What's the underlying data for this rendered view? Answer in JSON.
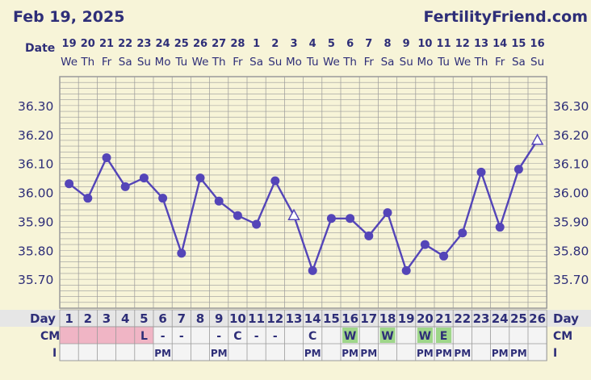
{
  "header": {
    "date": "Feb 19, 2025",
    "site": "FertilityFriend.com"
  },
  "row_labels": {
    "date": "Date",
    "day": "Day",
    "cm": "CM",
    "intercourse": "I"
  },
  "colors": {
    "line": "#5445b8",
    "axis_text": "#2e2e78",
    "background": "#f7f4d8",
    "grid": "#9a9a9a",
    "period_cell": "#f0b5c5",
    "fertile_cell": "#9fd68a",
    "row_bg": "#f4f4f4"
  },
  "chart_data": {
    "type": "line",
    "title": "",
    "ylim": [
      35.6,
      36.4
    ],
    "y_ticks": [
      "36.30",
      "36.20",
      "36.10",
      "36.00",
      "35.90",
      "35.80",
      "35.70"
    ],
    "dates": [
      "19",
      "20",
      "21",
      "22",
      "23",
      "24",
      "25",
      "26",
      "27",
      "28",
      "1",
      "2",
      "3",
      "4",
      "5",
      "6",
      "7",
      "8",
      "9",
      "10",
      "11",
      "12",
      "13",
      "14",
      "15",
      "16"
    ],
    "weekdays": [
      "We",
      "Th",
      "Fr",
      "Sa",
      "Su",
      "Mo",
      "Tu",
      "We",
      "Th",
      "Fr",
      "Sa",
      "Su",
      "Mo",
      "Tu",
      "We",
      "Th",
      "Fr",
      "Sa",
      "Su",
      "Mo",
      "Tu",
      "We",
      "Th",
      "Fr",
      "Sa",
      "Su"
    ],
    "cycle_days": [
      "1",
      "2",
      "3",
      "4",
      "5",
      "6",
      "7",
      "8",
      "9",
      "10",
      "11",
      "12",
      "13",
      "14",
      "15",
      "16",
      "17",
      "18",
      "19",
      "20",
      "21",
      "22",
      "23",
      "24",
      "25",
      "26"
    ],
    "temperatures": [
      36.03,
      35.98,
      36.12,
      36.02,
      36.05,
      35.98,
      35.79,
      36.05,
      35.97,
      35.92,
      35.89,
      36.04,
      35.92,
      35.73,
      35.91,
      35.91,
      35.85,
      35.93,
      35.73,
      35.82,
      35.78,
      35.86,
      36.07,
      35.88,
      36.08,
      36.18
    ],
    "markers": [
      "circle",
      "circle",
      "circle",
      "circle",
      "circle",
      "circle",
      "circle",
      "circle",
      "circle",
      "circle",
      "circle",
      "circle",
      "triangle",
      "circle",
      "circle",
      "circle",
      "circle",
      "circle",
      "circle",
      "circle",
      "circle",
      "circle",
      "circle",
      "circle",
      "circle",
      "triangle"
    ],
    "cm": [
      "",
      "",
      "",
      "",
      "L",
      "-",
      "-",
      "",
      "-",
      "C",
      "-",
      "-",
      "",
      "C",
      "",
      "W",
      "",
      "W",
      "",
      "W",
      "E",
      "",
      "",
      "",
      "",
      ""
    ],
    "cm_colors": [
      "period",
      "period",
      "period",
      "period",
      "period",
      "",
      "",
      "",
      "",
      "",
      "",
      "",
      "",
      "",
      "",
      "fertile",
      "",
      "fertile",
      "",
      "fertile",
      "fertile",
      "",
      "",
      "",
      "",
      ""
    ],
    "intercourse": [
      "",
      "",
      "",
      "",
      "",
      "PM",
      "",
      "",
      "PM",
      "",
      "",
      "",
      "",
      "PM",
      "",
      "PM",
      "PM",
      "",
      "",
      "PM",
      "PM",
      "PM",
      "",
      "PM",
      "PM",
      ""
    ]
  }
}
